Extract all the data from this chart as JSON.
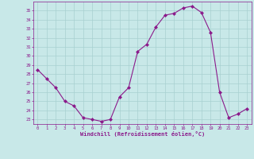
{
  "x": [
    0,
    1,
    2,
    3,
    4,
    5,
    6,
    7,
    8,
    9,
    10,
    11,
    12,
    13,
    14,
    15,
    16,
    17,
    18,
    19,
    20,
    21,
    22,
    23
  ],
  "y": [
    28.5,
    27.5,
    26.5,
    25.0,
    24.5,
    23.2,
    23.0,
    22.8,
    23.0,
    25.5,
    26.5,
    30.5,
    31.3,
    33.2,
    34.5,
    34.7,
    35.3,
    35.5,
    34.8,
    32.6,
    26.0,
    23.2,
    23.6,
    24.2
  ],
  "line_color": "#8B1A8B",
  "marker_color": "#8B1A8B",
  "bg_color": "#C8E8E8",
  "grid_color": "#A8D0D0",
  "axis_label_color": "#8B1A8B",
  "tick_color": "#8B1A8B",
  "xlabel": "Windchill (Refroidissement éolien,°C)",
  "ylim_min": 22.5,
  "ylim_max": 36.0,
  "xlim_min": -0.5,
  "xlim_max": 23.5,
  "ytick_min": 23,
  "ytick_max": 35,
  "xticks": [
    0,
    1,
    2,
    3,
    4,
    5,
    6,
    7,
    8,
    9,
    10,
    11,
    12,
    13,
    14,
    15,
    16,
    17,
    18,
    19,
    20,
    21,
    22,
    23
  ]
}
